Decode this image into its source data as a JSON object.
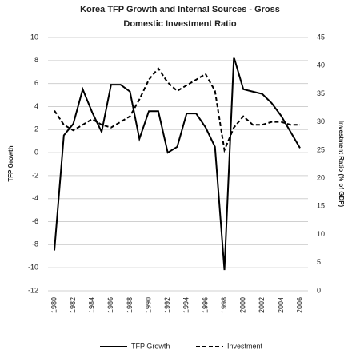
{
  "chart_data": {
    "type": "line",
    "title_lines": [
      "Korea TFP Growth and Internal Sources - Gross",
      "Domestic Investment Ratio"
    ],
    "y_label": "TFP Growth",
    "y2_label": "Investment Ratio (% of GDP)",
    "categories": [
      "1980",
      null,
      "1982",
      null,
      "1984",
      null,
      "1986",
      null,
      "1988",
      null,
      "1990",
      null,
      "1992",
      null,
      "1994",
      null,
      "1996",
      null,
      "1998",
      null,
      "2000",
      null,
      "2002",
      null,
      "2004",
      null,
      "2006"
    ],
    "series": [
      {
        "name": "TFP Growth",
        "color": "#000000",
        "dash": "solid",
        "values": [
          -8.5,
          1.5,
          2.5,
          5.5,
          3.5,
          1.8,
          5.9,
          5.9,
          5.3,
          1.2,
          3.6,
          3.6,
          0,
          0.5,
          3.4,
          3.4,
          2.2,
          0.5,
          -10.2,
          8.3,
          5.5,
          5.3,
          5.1,
          4.3,
          3.2,
          1.8,
          0.4
        ]
      },
      {
        "name": "Investment",
        "color": "#000000",
        "dash": "dashed",
        "axis": "y2",
        "values": [
          32,
          29.5,
          28.5,
          29.5,
          30.5,
          29.5,
          29,
          30,
          31,
          34,
          37.5,
          39.5,
          37,
          35.5,
          36.5,
          37.5,
          38.5,
          35.5,
          25,
          29,
          31,
          29.5,
          29.5,
          30,
          30,
          29.5,
          29.5
        ]
      }
    ],
    "ylim": [
      -12,
      10
    ],
    "yticks": [
      -12,
      -10,
      -8,
      -6,
      -4,
      -2,
      0,
      2,
      4,
      6,
      8,
      10
    ],
    "y2lim": [
      0,
      45
    ],
    "y2ticks": [
      0,
      5,
      10,
      15,
      20,
      25,
      30,
      35,
      40,
      45
    ],
    "grid": true,
    "legend": "bottom"
  }
}
